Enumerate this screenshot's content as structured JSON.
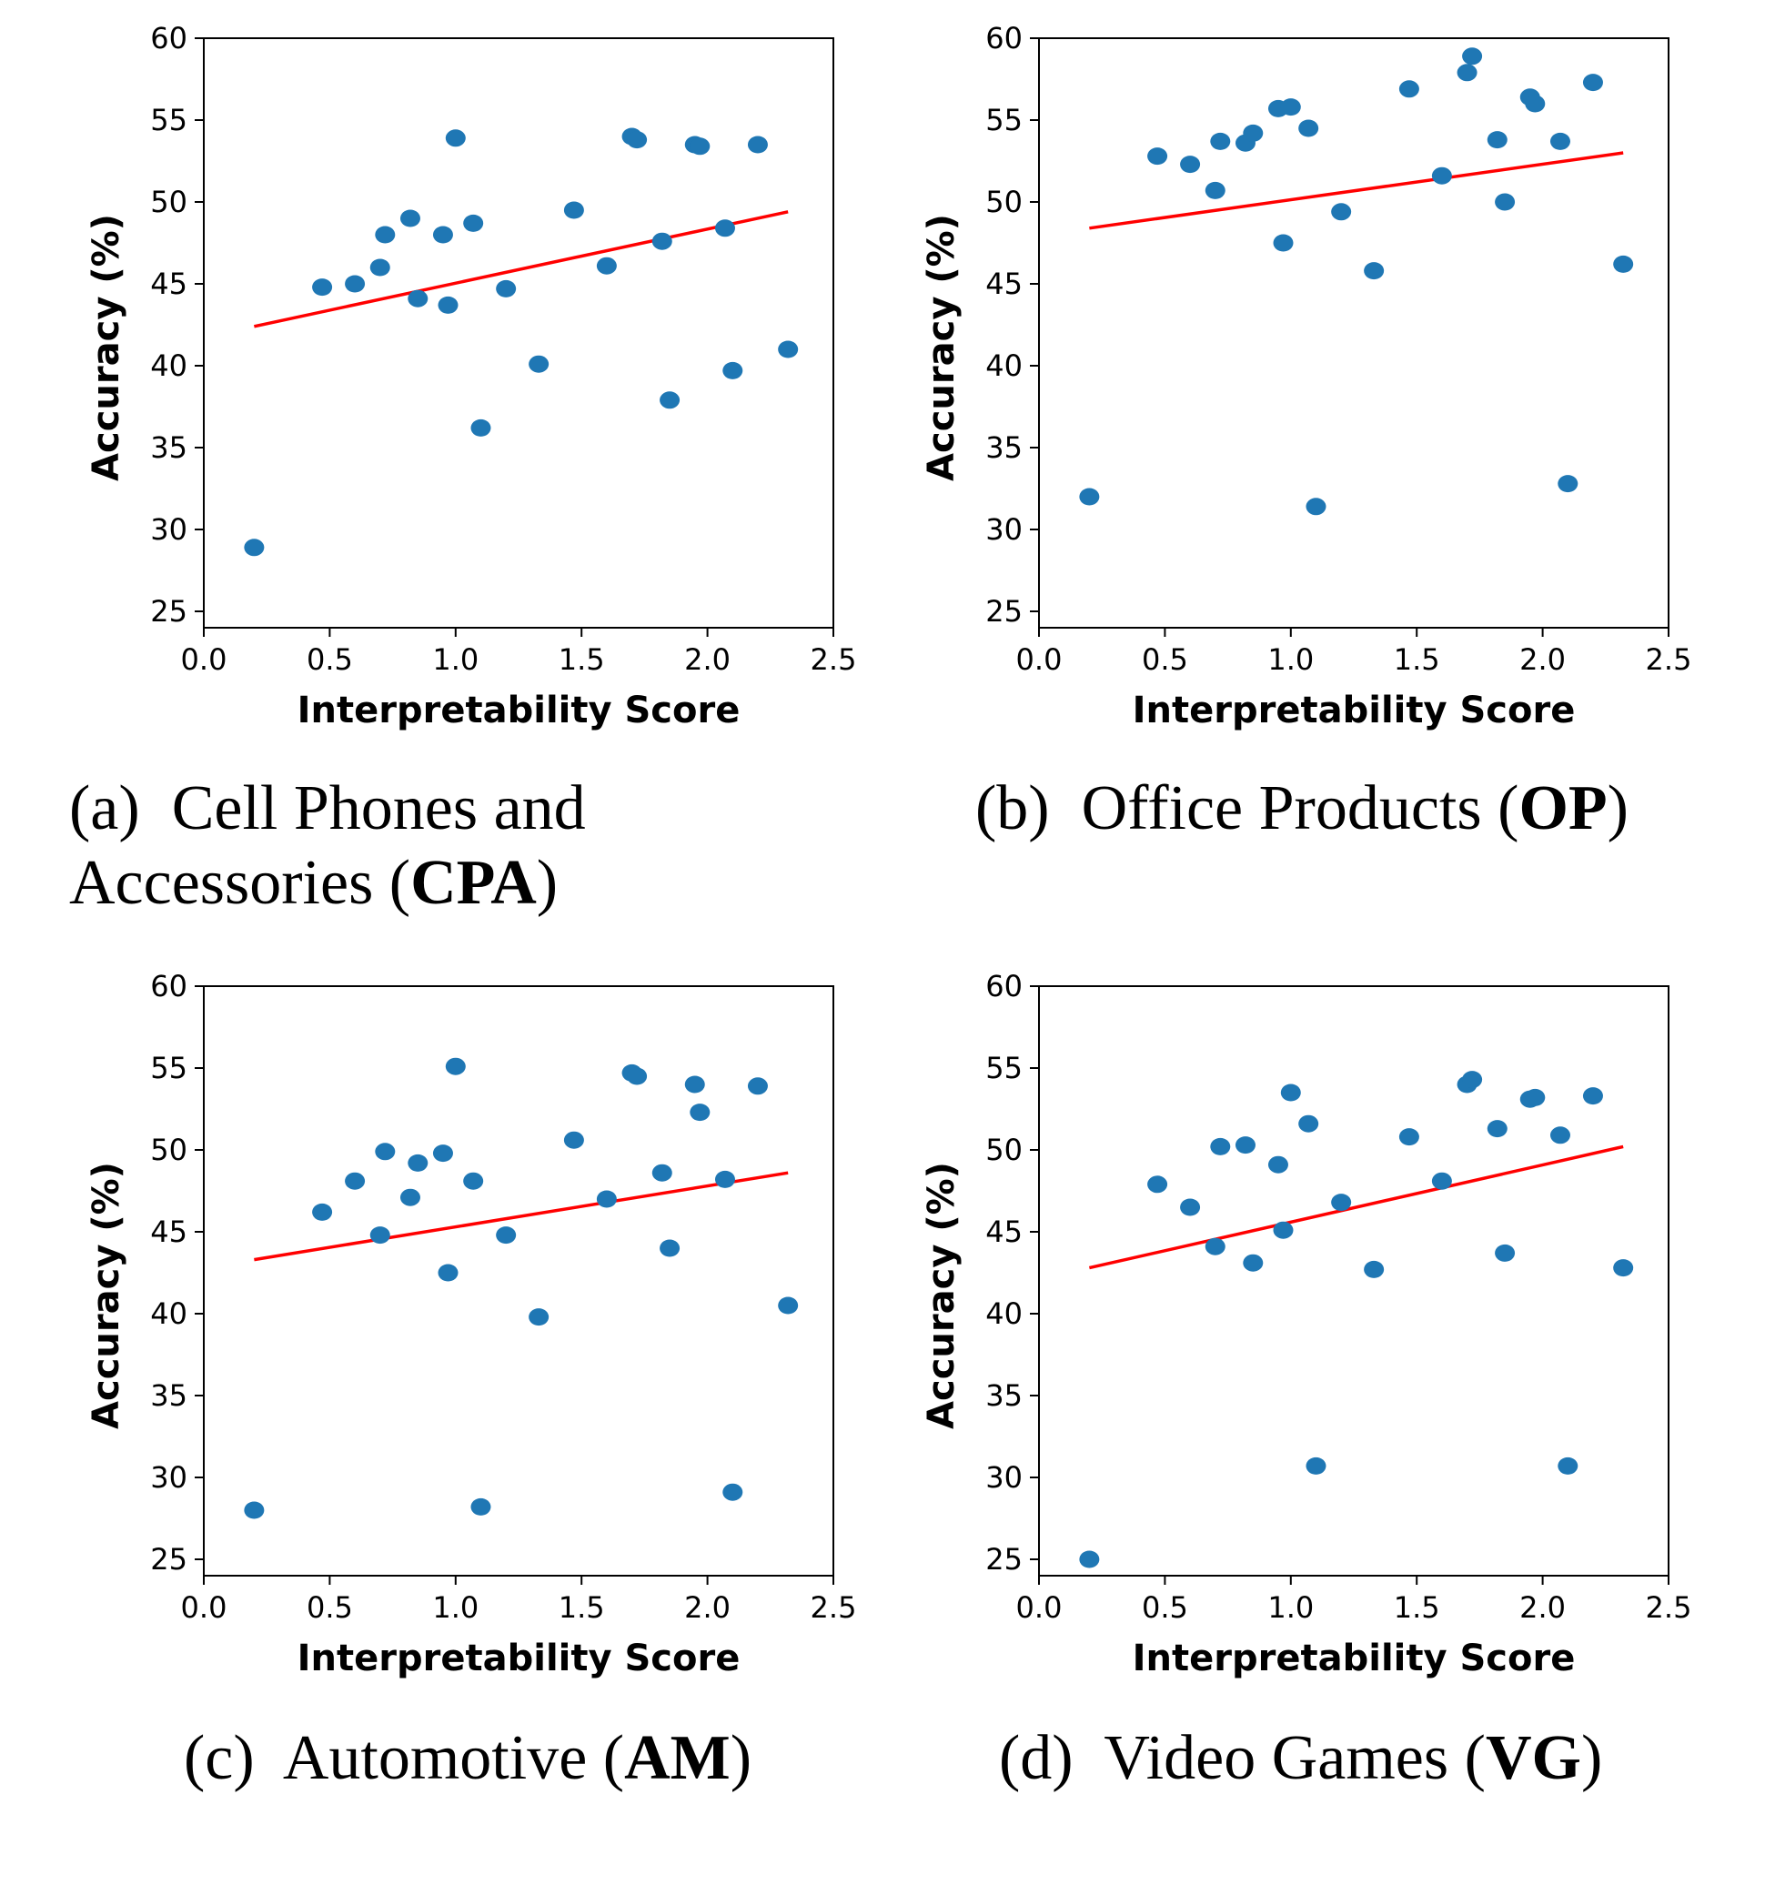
{
  "chart_data": [
    {
      "type": "scatter",
      "panel_id": "a",
      "caption": {
        "prefix": "(a)",
        "text": "Cell Phones and Accessories (",
        "abbr": "CPA",
        "suffix": ")"
      },
      "xlabel": "Interpretability Score",
      "ylabel": "Accuracy (%)",
      "xlim": [
        0.0,
        2.5
      ],
      "ylim": [
        24,
        60
      ],
      "xticks": [
        "0.0",
        "0.5",
        "1.0",
        "1.5",
        "2.0",
        "2.5"
      ],
      "yticks": [
        "25",
        "30",
        "35",
        "40",
        "45",
        "50",
        "55",
        "60"
      ],
      "points": {
        "x": [
          0.2,
          0.47,
          0.6,
          0.7,
          0.72,
          0.82,
          0.85,
          0.95,
          0.97,
          1.0,
          1.07,
          1.1,
          1.2,
          1.33,
          1.47,
          1.6,
          1.7,
          1.72,
          1.82,
          1.85,
          1.95,
          1.97,
          2.07,
          2.1,
          2.2,
          2.32
        ],
        "y": [
          28.9,
          44.8,
          45.0,
          46.0,
          48.0,
          49.0,
          44.1,
          48.0,
          43.7,
          53.9,
          48.7,
          36.2,
          44.7,
          40.1,
          49.5,
          46.1,
          54.0,
          53.8,
          47.6,
          37.9,
          53.5,
          53.4,
          48.4,
          39.7,
          53.5,
          41.0
        ]
      },
      "trendline": {
        "x": [
          0.2,
          2.32
        ],
        "y": [
          42.4,
          49.4
        ]
      },
      "colors": {
        "points": "#1f77b4",
        "trendline": "#ff0000"
      }
    },
    {
      "type": "scatter",
      "panel_id": "b",
      "caption": {
        "prefix": "(b)",
        "text": "Office Products (",
        "abbr": "OP",
        "suffix": ")"
      },
      "xlabel": "Interpretability Score",
      "ylabel": "Accuracy (%)",
      "xlim": [
        0.0,
        2.5
      ],
      "ylim": [
        24,
        60
      ],
      "xticks": [
        "0.0",
        "0.5",
        "1.0",
        "1.5",
        "2.0",
        "2.5"
      ],
      "yticks": [
        "25",
        "30",
        "35",
        "40",
        "45",
        "50",
        "55",
        "60"
      ],
      "points": {
        "x": [
          0.2,
          0.47,
          0.6,
          0.7,
          0.72,
          0.82,
          0.85,
          0.95,
          0.97,
          1.0,
          1.07,
          1.1,
          1.2,
          1.33,
          1.47,
          1.6,
          1.7,
          1.72,
          1.82,
          1.85,
          1.95,
          1.97,
          2.07,
          2.1,
          2.2,
          2.32
        ],
        "y": [
          32.0,
          52.8,
          52.3,
          50.7,
          53.7,
          53.6,
          54.2,
          55.7,
          47.5,
          55.8,
          54.5,
          31.4,
          49.4,
          45.8,
          56.9,
          51.6,
          57.9,
          58.9,
          53.8,
          50.0,
          56.4,
          56.0,
          53.7,
          32.8,
          57.3,
          46.2
        ]
      },
      "trendline": {
        "x": [
          0.2,
          2.32
        ],
        "y": [
          48.4,
          53.0
        ]
      },
      "colors": {
        "points": "#1f77b4",
        "trendline": "#ff0000"
      }
    },
    {
      "type": "scatter",
      "panel_id": "c",
      "caption": {
        "prefix": "(c)",
        "text": "Automotive (",
        "abbr": "AM",
        "suffix": ")"
      },
      "xlabel": "Interpretability Score",
      "ylabel": "Accuracy (%)",
      "xlim": [
        0.0,
        2.5
      ],
      "ylim": [
        24,
        60
      ],
      "xticks": [
        "0.0",
        "0.5",
        "1.0",
        "1.5",
        "2.0",
        "2.5"
      ],
      "yticks": [
        "25",
        "30",
        "35",
        "40",
        "45",
        "50",
        "55",
        "60"
      ],
      "points": {
        "x": [
          0.2,
          0.47,
          0.6,
          0.7,
          0.72,
          0.82,
          0.85,
          0.95,
          0.97,
          1.0,
          1.07,
          1.1,
          1.2,
          1.33,
          1.47,
          1.6,
          1.7,
          1.72,
          1.82,
          1.85,
          1.95,
          1.97,
          2.07,
          2.1,
          2.2,
          2.32
        ],
        "y": [
          28.0,
          46.2,
          48.1,
          44.8,
          49.9,
          47.1,
          49.2,
          49.8,
          42.5,
          55.1,
          48.1,
          28.2,
          44.8,
          39.8,
          50.6,
          47.0,
          54.7,
          54.5,
          48.6,
          44.0,
          54.0,
          52.3,
          48.2,
          29.1,
          53.9,
          40.5
        ]
      },
      "trendline": {
        "x": [
          0.2,
          2.32
        ],
        "y": [
          43.3,
          48.6
        ]
      },
      "colors": {
        "points": "#1f77b4",
        "trendline": "#ff0000"
      }
    },
    {
      "type": "scatter",
      "panel_id": "d",
      "caption": {
        "prefix": "(d)",
        "text": "Video Games (",
        "abbr": "VG",
        "suffix": ")"
      },
      "xlabel": "Interpretability Score",
      "ylabel": "Accuracy (%)",
      "xlim": [
        0.0,
        2.5
      ],
      "ylim": [
        24,
        60
      ],
      "xticks": [
        "0.0",
        "0.5",
        "1.0",
        "1.5",
        "2.0",
        "2.5"
      ],
      "yticks": [
        "25",
        "30",
        "35",
        "40",
        "45",
        "50",
        "55",
        "60"
      ],
      "points": {
        "x": [
          0.2,
          0.47,
          0.6,
          0.7,
          0.72,
          0.82,
          0.85,
          0.95,
          0.97,
          1.0,
          1.07,
          1.1,
          1.2,
          1.33,
          1.47,
          1.6,
          1.7,
          1.72,
          1.82,
          1.85,
          1.95,
          1.97,
          2.07,
          2.1,
          2.2,
          2.32
        ],
        "y": [
          25.0,
          47.9,
          46.5,
          44.1,
          50.2,
          50.3,
          43.1,
          49.1,
          45.1,
          53.5,
          51.6,
          30.7,
          46.8,
          42.7,
          50.8,
          48.1,
          54.0,
          54.3,
          51.3,
          43.7,
          53.1,
          53.2,
          50.9,
          30.7,
          53.3,
          42.8
        ]
      },
      "trendline": {
        "x": [
          0.2,
          2.32
        ],
        "y": [
          42.8,
          50.2
        ]
      },
      "colors": {
        "points": "#1f77b4",
        "trendline": "#ff0000"
      }
    }
  ]
}
